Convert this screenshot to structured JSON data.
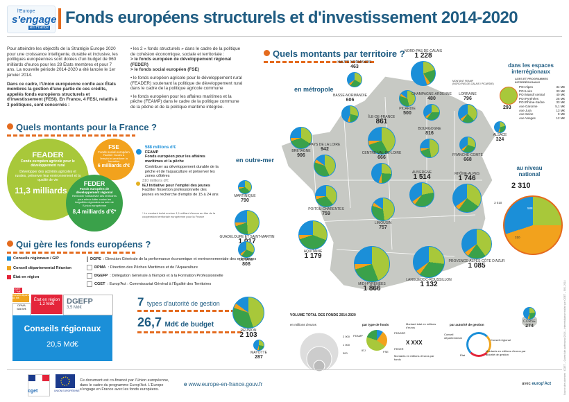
{
  "header": {
    "logo_line1": "l'Europe",
    "logo_line2": "s'engage",
    "logo_line3": "en France",
    "title": "Fonds européens structurels et d'investissement 2014-2020"
  },
  "intro": {
    "p1": "Pour atteindre les objectifs de la Stratégie Europe 2020 pour une croissance intelligente, durable et inclusive, les politiques européennes sont dotées d'un budget de 960 milliards d'euros pour les 28 États membres et pour 7 ans. La nouvelle période 2014-2020 a été lancée le 1er janvier 2014.",
    "p2": "Dans ce cadre, l'Union européenne confie aux États membres la gestion d'une partie de ces crédits, appelés fonds européens structurels et d'investissement (FESI). En France, 4 FESI, relatifs à 3 politiques, sont concernés :",
    "col2_a": "• les 2 « fonds structurels » dans le cadre de la politique de cohésion économique, sociale et territoriale :",
    "col2_b": "> le fonds européen de développement régional (FEDER)",
    "col2_c": "> le fonds social européen (FSE)",
    "col2_d": "• le fonds européen agricole pour le développement rural (FEADER) soutenant la politique de développement rural dans le cadre de la politique agricole commune",
    "col2_e": "• le fonds européen pour les affaires maritimes et la pêche (FEAMP) dans le cadre de la politique commune de la pêche et de la politique maritime intégrée."
  },
  "france_section": {
    "heading": "Quels montants pour la France ?",
    "feader": {
      "name": "FEADER",
      "sub": "Fonds européen agricole pour le développement rural",
      "desc": "Développer des activités agricoles et rurales, préserver leur environnement et la qualité de vie",
      "amount": "11,3 milliards d'€"
    },
    "fse": {
      "name": "FSE",
      "sub": "Fonds social européen",
      "desc": "Faciliter l'accès à l'emploi et améliorer la formation",
      "amount": "6 milliards d'€"
    },
    "feder": {
      "name": "FEDER",
      "sub": "Fonds européen de développement régional",
      "desc": "Renforcer l'attractivité des territoires pour mieux lutter contre les inégalités régionales au sein de l'Union européenne",
      "amount": "8,4 milliards d'€*"
    },
    "feamp": {
      "amount": "588 millions d'€",
      "name": "FEAMP",
      "sub": "Fonds européen pour les affaires maritimes et la pêche",
      "desc": "Contribuer au développement durable de la pêche et de l'aquaculture et préserver les zones côtières"
    },
    "iej": {
      "amount": "310 millions d'€",
      "name": "IEJ Initiative pour l'emploi des jeunes",
      "desc": "Faciliter l'insertion professionnelle des jeunes en recherche d'emploi de 15 à 24 ans"
    },
    "note": "* Le montant inclut environ 1,1 milliard d'euros au titre de la coopération territoriale européenne pour la France"
  },
  "who_section": {
    "heading": "Qui gère les fonds européens ?",
    "legend_left": [
      {
        "label": "Conseils régionaux / GIP",
        "color": "#1b8fd8"
      },
      {
        "label": "Conseil départemental Réunion",
        "color": "#f0a51e"
      },
      {
        "label": "État en région",
        "color": "#e4253a"
      }
    ],
    "legend_right": [
      {
        "code": "DGPE",
        "label": ": Direction Générale de la performance économique et environnementale des entreprises"
      },
      {
        "code": "DPMA",
        "label": ": Direction des Pêches Maritimes et de l'Aquaculture"
      },
      {
        "code": "DGEFP",
        "label": ": Délégation Générale à l'Emploi et à la Formation Professionnelle"
      },
      {
        "code": "CGET",
        "label": ": Europ'Act : Commissariat Général à l'Égalité des Territoires"
      }
    ],
    "tiles": {
      "cget": "CGET\n17 M€",
      "cd_reunion": "Conseil départemental Réunion\n60 M€",
      "dpma": "DPMA\n588 M€",
      "etat_region": "État en région",
      "etat_amount": "1,2 Md€",
      "dgefp": "DGEFP",
      "dgefp_amount": "3,5 Md€",
      "conseils": "Conseils régionaux",
      "conseils_amount": "20,5 Md€"
    },
    "seven": "7",
    "seven_text": "types d'autorité de gestion",
    "budget": "26,7",
    "budget_unit": "Md€ de budget"
  },
  "territory": {
    "heading": "Quels montants par territoire ?",
    "metro": "en métropole",
    "outremer": "en outre-mer",
    "interreg_title": "dans les espaces interrégionaux",
    "interreg_sub": "AXES ET PROGRAMMES INTERRÉGIONAUX",
    "interreg_total": "293",
    "interreg_rows": [
      [
        "POI Alpes",
        "34 M€"
      ],
      [
        "POI Loire",
        "33 M€"
      ],
      [
        "POI Massif central",
        "40 M€"
      ],
      [
        "POI Pyrénées",
        "25 M€"
      ],
      [
        "POI Rhône-Saône",
        "33 M€"
      ],
      [
        "Axe Garonne",
        "5,1 M€"
      ],
      [
        "Axe Jura",
        "13 M€"
      ],
      [
        "Axe Seine",
        "9 M€"
      ],
      [
        "Axe Vosges",
        "12 M€"
      ]
    ],
    "national_title": "au niveau national",
    "national_value": "2 310",
    "national_labels": [
      "3 010",
      "588",
      "310"
    ],
    "regions": [
      {
        "name": "NORD-PAS-DE-CALAIS",
        "value": "1 228"
      },
      {
        "name": "HAUTE-NORMANDIE",
        "value": "463"
      },
      {
        "name": "PICARDIE",
        "value": "500"
      },
      {
        "name": "BASSE-NORMANDIE",
        "value": "606"
      },
      {
        "name": "ÎLE-DE-FRANCE",
        "value": "861"
      },
      {
        "name": "CHAMPAGNE-ARDENNE",
        "value": "480"
      },
      {
        "name": "LORRAINE",
        "value": "796"
      },
      {
        "name": "ALSACE",
        "value": "324"
      },
      {
        "name": "BRETAGNE",
        "value": "906"
      },
      {
        "name": "BOURGOGNE",
        "value": "816"
      },
      {
        "name": "FRANCHE-COMTÉ",
        "value": "668"
      },
      {
        "name": "PAYS DE LA LOIRE",
        "value": "942"
      },
      {
        "name": "CENTRE-VAL-DE-LOIRE",
        "value": "666"
      },
      {
        "name": "POITOU-CHARENTES",
        "value": "759"
      },
      {
        "name": "AUVERGNE",
        "value": "1 514"
      },
      {
        "name": "RHÔNE-ALPES",
        "value": "1 746"
      },
      {
        "name": "LIMOUSIN",
        "value": "757"
      },
      {
        "name": "AQUITAINE",
        "value": "1 179"
      },
      {
        "name": "MIDI-PYRÉNÉES",
        "value": "1 866"
      },
      {
        "name": "LANGUEDOC-ROUSSILLON",
        "value": "1 132"
      },
      {
        "name": "PROVENCE-ALPES-CÔTE D'AZUR",
        "value": "1 085"
      },
      {
        "name": "CORSE",
        "value": "274"
      }
    ],
    "outre": [
      {
        "name": "MARTINIQUE",
        "value": "790"
      },
      {
        "name": "GUADELOUPE ET SAINT-MARTIN",
        "value": "1 017"
      },
      {
        "name": "GUYANE",
        "value": "808"
      },
      {
        "name": "RÉUNION",
        "value": "2 103"
      },
      {
        "name": "MAYOTTE",
        "value": "287"
      }
    ],
    "marker_label": "MONTANT FEAMP",
    "marker_sub": "(NORD-PAS-DE-CALAIS / PICARDIE)",
    "legend_vol": "VOLUME TOTAL DES FONDS 2014-2020",
    "legend_unit": "en millions d'euros",
    "legend_vals": [
      "2 000",
      "1 000",
      "300"
    ],
    "legend_type": "par type de fonds",
    "legend_types": [
      "FEAMP",
      "FEADER",
      "FSE",
      "IEJ",
      "FEDER"
    ],
    "legend_total": "Montant total en millions d'euros",
    "legend_xxx": "X XXX",
    "legend_parfonds": "Montants en millions d'euros par fonds",
    "legend_auth": "par autorité de gestion",
    "legend_auths": [
      "Conseil départemental",
      "Conseil régional",
      "État",
      "Montants en millions d'euros par autorité de gestion"
    ]
  },
  "footer": {
    "text": "Ce document est co-financé par l'Union européenne, dans le cadre du programme Europ'Act. L'Europe s'engage en France avec les fonds européens.",
    "url": "www.europe-en-france.gouv.fr",
    "partner": "avec",
    "partner_logo": "europ'Act",
    "ue": "UNION EUROPÉENNE",
    "cget": "cget",
    "credit": "Source des données : CGET – Conseil de partenariat 2014 – Intermédiateur réalisé par CGET – SIG, 2014"
  },
  "colors": {
    "feader": "#a8c83a",
    "fse": "#f2a21d",
    "feder": "#3aa14a",
    "feamp": "#1b8fd8",
    "iej": "#e4b021",
    "title": "#1f5c82",
    "accent": "#e46b1e"
  }
}
